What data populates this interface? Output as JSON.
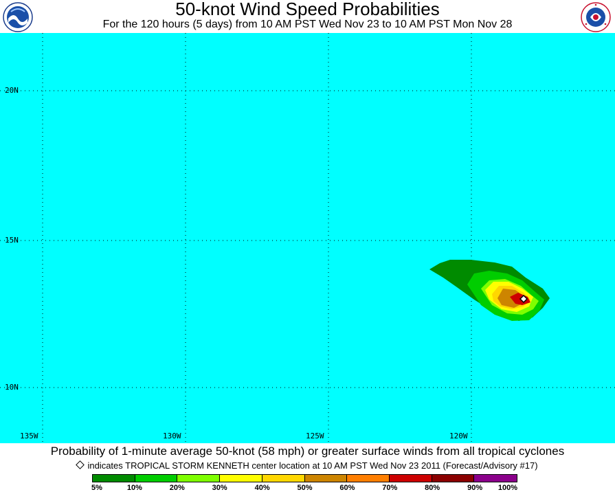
{
  "title": "50-knot Wind Speed Probabilities",
  "subtitle": "For the 120 hours (5 days) from 10 AM PST Wed Nov 23 to 10 AM PST Mon Nov 28",
  "logos": {
    "left": "noaa-logo",
    "right": "nws-logo"
  },
  "map": {
    "background": "#00ffff",
    "lat_labels": [
      "20N",
      "15N",
      "10N"
    ],
    "lon_labels": [
      "135W",
      "130W",
      "125W",
      "120W"
    ]
  },
  "caption": "Probability of 1-minute average 50-knot (58 mph) or greater surface winds from all tropical cyclones",
  "storm_note": "indicates TROPICAL STORM KENNETH center location at 10 AM PST Wed Nov 23 2011 (Forecast/Advisory #17)",
  "storm": {
    "name": "TROPICAL STORM KENNETH",
    "lat": 13.0,
    "lon": -118.1
  },
  "legend": {
    "labels": [
      "5%",
      "10%",
      "20%",
      "30%",
      "40%",
      "50%",
      "60%",
      "70%",
      "80%",
      "90%",
      "100%"
    ],
    "colors": [
      "#008b00",
      "#00cd00",
      "#7fff00",
      "#ffff00",
      "#ffd700",
      "#cd8500",
      "#ff7f00",
      "#cd0000",
      "#8b0000",
      "#8b008b"
    ]
  }
}
